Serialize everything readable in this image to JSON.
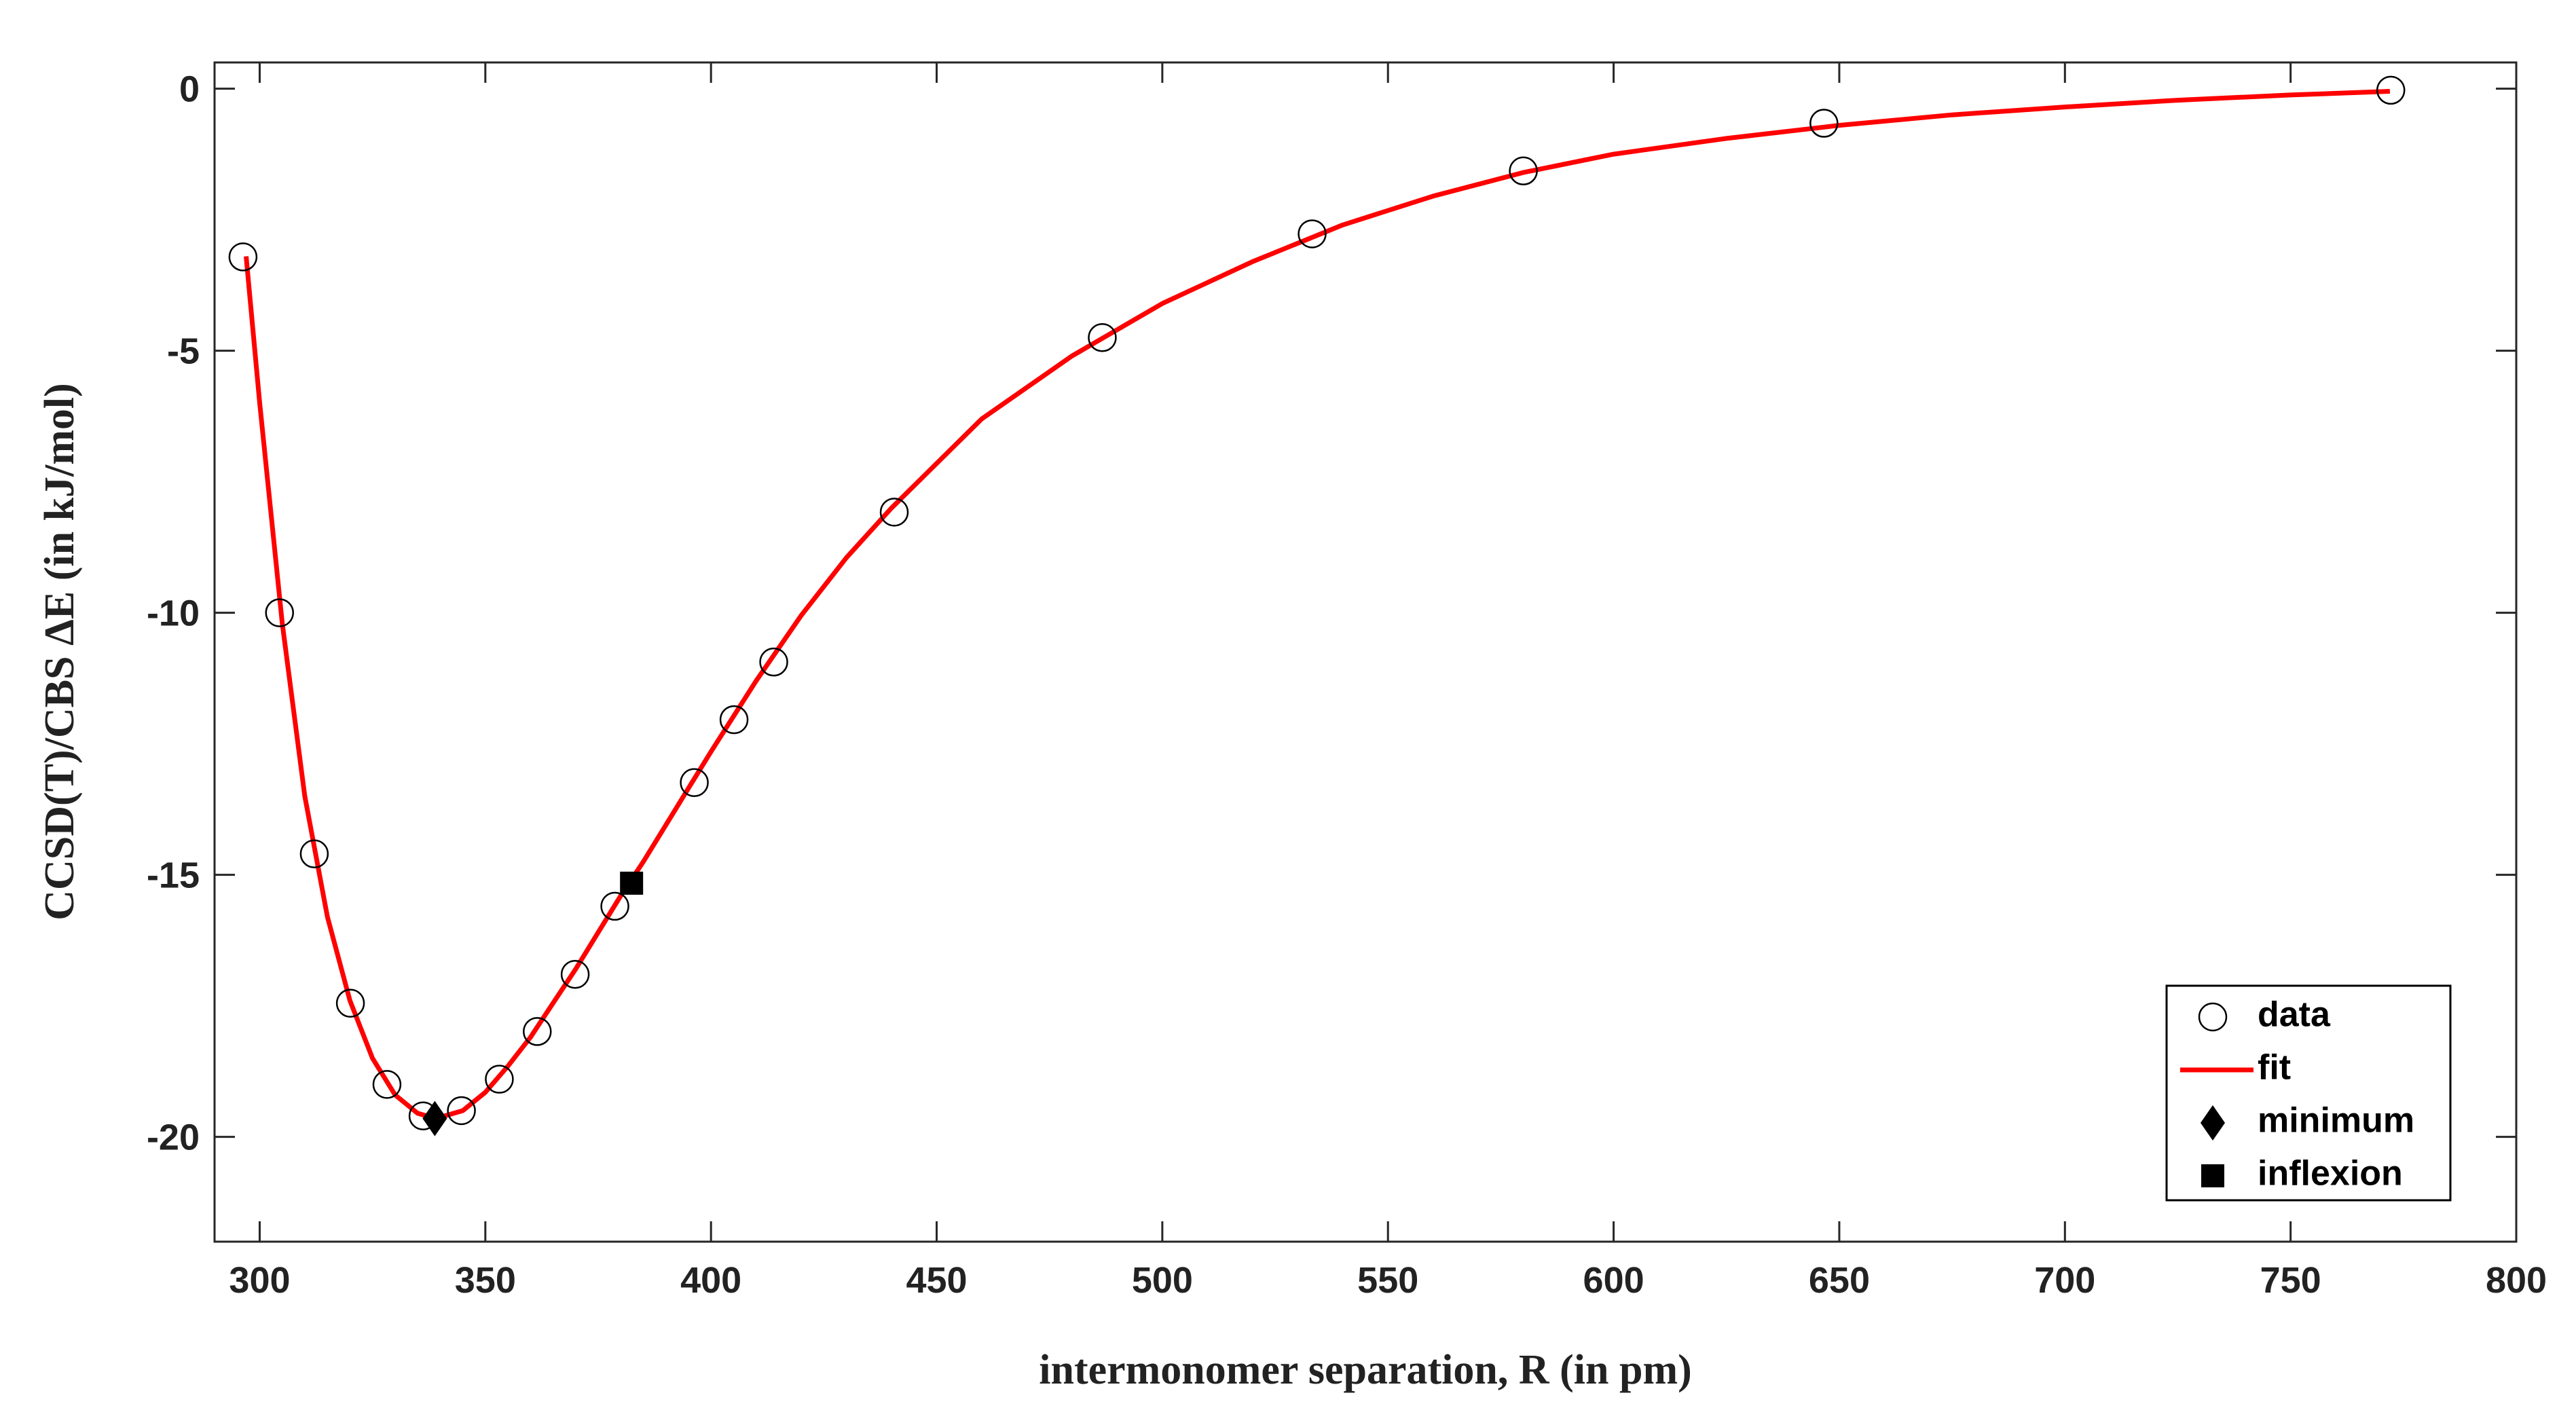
{
  "chart_data": {
    "type": "scatter",
    "x_label": "intermonomer separation, R (in pm)",
    "y_label": "CCSD(T)/CBS ΔE (in kJ/mol)",
    "xlim": [
      290,
      800
    ],
    "ylim": [
      -22,
      0.5
    ],
    "xticks": [
      300,
      350,
      400,
      450,
      500,
      550,
      600,
      650,
      700,
      750,
      800
    ],
    "yticks": [
      0,
      -5,
      -10,
      -15,
      -20
    ],
    "legend": "lower right",
    "series": [
      {
        "name": "data",
        "marker": "circle",
        "color": "#000000",
        "x": [
          296.3,
          304.4,
          312.1,
          320.1,
          328.2,
          336.2,
          344.7,
          353.1,
          361.5,
          369.9,
          378.7,
          396.3,
          405.1,
          413.9,
          440.6,
          486.7,
          533.2,
          580,
          646.6,
          772.2
        ],
        "values": [
          -3.21,
          -10.0,
          -14.6,
          -17.45,
          -19.0,
          -19.6,
          -19.5,
          -18.9,
          -17.99,
          -16.9,
          -15.6,
          -13.24,
          -12.04,
          -10.94,
          -8.08,
          -4.75,
          -2.77,
          -1.57,
          -0.66,
          -0.03
        ]
      },
      {
        "name": "fit",
        "marker": "line",
        "color": "#ff0000",
        "x": [
          297,
          300,
          305,
          310,
          315,
          320,
          325,
          330,
          335,
          339,
          345,
          350,
          355,
          360,
          365,
          370,
          375,
          380,
          385,
          390,
          395,
          400,
          410,
          420,
          430,
          440,
          460,
          480,
          500,
          520,
          540,
          560,
          580,
          600,
          625,
          650,
          675,
          700,
          725,
          750,
          772
        ],
        "values": [
          -3.2,
          -6.0,
          -10.2,
          -13.5,
          -15.8,
          -17.4,
          -18.5,
          -19.2,
          -19.55,
          -19.65,
          -19.5,
          -19.15,
          -18.65,
          -18.1,
          -17.45,
          -16.8,
          -16.1,
          -15.4,
          -14.75,
          -14.05,
          -13.35,
          -12.65,
          -11.3,
          -10.05,
          -8.95,
          -8.0,
          -6.3,
          -5.1,
          -4.1,
          -3.3,
          -2.6,
          -2.05,
          -1.6,
          -1.25,
          -0.95,
          -0.7,
          -0.5,
          -0.35,
          -0.22,
          -0.12,
          -0.05
        ]
      },
      {
        "name": "minimum",
        "marker": "diamond",
        "color": "#000000",
        "x": [
          338.8
        ],
        "values": [
          -19.65
        ]
      },
      {
        "name": "inflexion",
        "marker": "square",
        "color": "#000000",
        "x": [
          382.4
        ],
        "values": [
          -15.16
        ]
      }
    ]
  }
}
